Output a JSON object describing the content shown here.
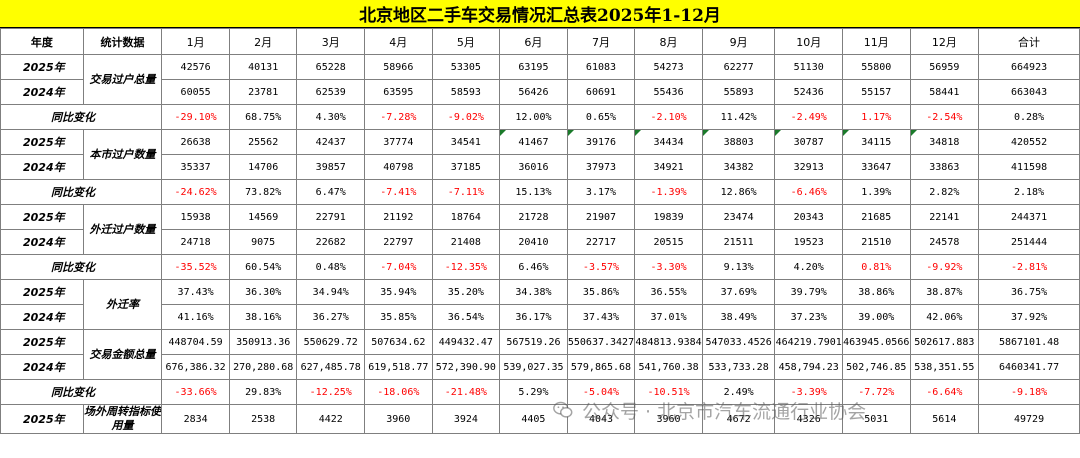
{
  "title": "北京地区二手车交易情况汇总表2025年1-12月",
  "header": {
    "year_col": "年度",
    "stat_col": "统计数据",
    "months": [
      "1月",
      "2月",
      "3月",
      "4月",
      "5月",
      "6月",
      "7月",
      "8月",
      "9月",
      "10月",
      "11月",
      "12月",
      "合计"
    ]
  },
  "rows": [
    {
      "type": "year",
      "year": "2025年",
      "metric": "交易过户总量",
      "span": 2,
      "values": [
        "42576",
        "40131",
        "65228",
        "58966",
        "53305",
        "63195",
        "61083",
        "54273",
        "62277",
        "51130",
        "55800",
        "56959",
        "664923"
      ]
    },
    {
      "type": "year",
      "year": "2024年",
      "values": [
        "60055",
        "23781",
        "62539",
        "63595",
        "58593",
        "56426",
        "60691",
        "55436",
        "55893",
        "52436",
        "55157",
        "58441",
        "663043"
      ]
    },
    {
      "type": "yoy",
      "label": "同比变化",
      "values": [
        "-29.10%",
        "68.75%",
        "4.30%",
        "-7.28%",
        "-9.02%",
        "12.00%",
        "0.65%",
        "-2.10%",
        "11.42%",
        "-2.49%",
        "1.17%",
        "-2.54%",
        "0.28%"
      ],
      "negative": [
        true,
        false,
        false,
        true,
        true,
        false,
        false,
        true,
        false,
        true,
        true,
        true,
        false
      ],
      "red": [
        true,
        false,
        false,
        true,
        true,
        false,
        false,
        true,
        false,
        true,
        true,
        true,
        false
      ]
    },
    {
      "type": "year",
      "year": "2025年",
      "metric": "本市过户数量",
      "span": 2,
      "values": [
        "26638",
        "25562",
        "42437",
        "37774",
        "34541",
        "41467",
        "39176",
        "34434",
        "38803",
        "30787",
        "34115",
        "34818",
        "420552"
      ],
      "flags": [
        false,
        false,
        false,
        false,
        false,
        true,
        true,
        true,
        true,
        true,
        true,
        true,
        false
      ]
    },
    {
      "type": "year",
      "year": "2024年",
      "values": [
        "35337",
        "14706",
        "39857",
        "40798",
        "37185",
        "36016",
        "37973",
        "34921",
        "34382",
        "32913",
        "33647",
        "33863",
        "411598"
      ]
    },
    {
      "type": "yoy",
      "label": "同比变化",
      "values": [
        "-24.62%",
        "73.82%",
        "6.47%",
        "-7.41%",
        "-7.11%",
        "15.13%",
        "3.17%",
        "-1.39%",
        "12.86%",
        "-6.46%",
        "1.39%",
        "2.82%",
        "2.18%"
      ],
      "red": [
        true,
        false,
        false,
        true,
        true,
        false,
        false,
        true,
        false,
        true,
        false,
        false,
        false
      ]
    },
    {
      "type": "year",
      "year": "2025年",
      "metric": "外迁过户数量",
      "span": 2,
      "values": [
        "15938",
        "14569",
        "22791",
        "21192",
        "18764",
        "21728",
        "21907",
        "19839",
        "23474",
        "20343",
        "21685",
        "22141",
        "244371"
      ]
    },
    {
      "type": "year",
      "year": "2024年",
      "values": [
        "24718",
        "9075",
        "22682",
        "22797",
        "21408",
        "20410",
        "22717",
        "20515",
        "21511",
        "19523",
        "21510",
        "24578",
        "251444"
      ]
    },
    {
      "type": "yoy",
      "label": "同比变化",
      "values": [
        "-35.52%",
        "60.54%",
        "0.48%",
        "-7.04%",
        "-12.35%",
        "6.46%",
        "-3.57%",
        "-3.30%",
        "9.13%",
        "4.20%",
        "0.81%",
        "-9.92%",
        "-2.81%"
      ],
      "red": [
        true,
        false,
        false,
        true,
        true,
        false,
        true,
        true,
        false,
        false,
        true,
        true,
        true
      ]
    },
    {
      "type": "year",
      "year": "2025年",
      "metric": "外迁率",
      "span": 2,
      "values": [
        "37.43%",
        "36.30%",
        "34.94%",
        "35.94%",
        "35.20%",
        "34.38%",
        "35.86%",
        "36.55%",
        "37.69%",
        "39.79%",
        "38.86%",
        "38.87%",
        "36.75%"
      ]
    },
    {
      "type": "year",
      "year": "2024年",
      "values": [
        "41.16%",
        "38.16%",
        "36.27%",
        "35.85%",
        "36.54%",
        "36.17%",
        "37.43%",
        "37.01%",
        "38.49%",
        "37.23%",
        "39.00%",
        "42.06%",
        "37.92%"
      ]
    },
    {
      "type": "year",
      "year": "2025年",
      "metric": "交易金额总量",
      "span": 2,
      "values": [
        "448704.59",
        "350913.36",
        "550629.72",
        "507634.62",
        "449432.47",
        "567519.26",
        "550637.3427",
        "484813.9384",
        "547033.4526",
        "464219.7901",
        "463945.0566",
        "502617.883",
        "5867101.48"
      ]
    },
    {
      "type": "year",
      "year": "2024年",
      "values": [
        "676,386.32",
        "270,280.68",
        "627,485.78",
        "619,518.77",
        "572,390.90",
        "539,027.35",
        "579,865.68",
        "541,760.38",
        "533,733.28",
        "458,794.23",
        "502,746.85",
        "538,351.55",
        "6460341.77"
      ]
    },
    {
      "type": "yoy",
      "label": "同比变化",
      "values": [
        "-33.66%",
        "29.83%",
        "-12.25%",
        "-18.06%",
        "-21.48%",
        "5.29%",
        "-5.04%",
        "-10.51%",
        "2.49%",
        "-3.39%",
        "-7.72%",
        "-6.64%",
        "-9.18%"
      ],
      "red": [
        true,
        false,
        true,
        true,
        true,
        false,
        true,
        true,
        false,
        true,
        true,
        true,
        true
      ]
    },
    {
      "type": "year",
      "year": "2025年",
      "metric": "场外周转指标使用量",
      "span": 1,
      "values": [
        "2834",
        "2538",
        "4422",
        "3960",
        "3924",
        "4405",
        "4043",
        "3960",
        "4672",
        "4326",
        "5031",
        "5614",
        "49729"
      ]
    }
  ],
  "watermark": {
    "icon": "wechat-icon",
    "text": "公众号 · 北京市汽车流通行业协会"
  }
}
